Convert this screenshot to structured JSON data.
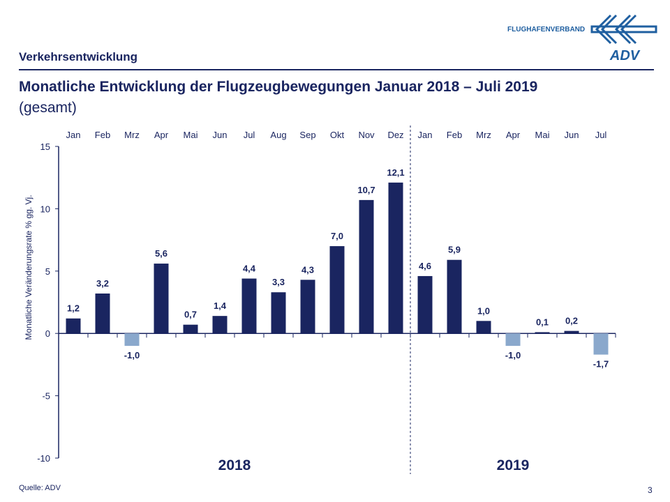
{
  "header": {
    "section": "Verkehrsentwicklung",
    "brand": "FLUGHAFENVERBAND",
    "logo_text": "ADV",
    "brand_color": "#1f5fa0"
  },
  "footer": {
    "source": "Quelle: ADV",
    "page_number": "3"
  },
  "chart_data": {
    "type": "bar",
    "title": "Monatliche Entwicklung der Flugzeugbewegungen Januar 2018 – Juli 2019",
    "subtitle": "(gesamt)",
    "ylabel": "Monatliche Veränderungsrate % gg. Vj.",
    "ylim": [
      -10,
      15
    ],
    "yticks": [
      15,
      10,
      5,
      0,
      -5,
      -10
    ],
    "categories": [
      "Jan",
      "Feb",
      "Mrz",
      "Apr",
      "Mai",
      "Jun",
      "Jul",
      "Aug",
      "Sep",
      "Okt",
      "Nov",
      "Dez",
      "Jan",
      "Feb",
      "Mrz",
      "Apr",
      "Mai",
      "Jun",
      "Jul"
    ],
    "groups": [
      {
        "label": "2018",
        "count": 12
      },
      {
        "label": "2019",
        "count": 7
      }
    ],
    "values": [
      1.2,
      3.2,
      -1.0,
      5.6,
      0.7,
      1.4,
      4.4,
      3.3,
      4.3,
      7.0,
      10.7,
      12.1,
      4.6,
      5.9,
      1.0,
      -1.0,
      0.1,
      0.2,
      -1.7
    ],
    "labels": [
      "1,2",
      "3,2",
      "-1,0",
      "5,6",
      "0,7",
      "1,4",
      "4,4",
      "3,3",
      "4,3",
      "7,0",
      "10,7",
      "12,1",
      "4,6",
      "5,9",
      "1,0",
      "-1,0",
      "0,1",
      "0,2",
      "-1,7"
    ],
    "colors": {
      "positive": "#1a2560",
      "negative": "#8aa8cc",
      "axis": "#1a2560"
    },
    "grid": false
  }
}
